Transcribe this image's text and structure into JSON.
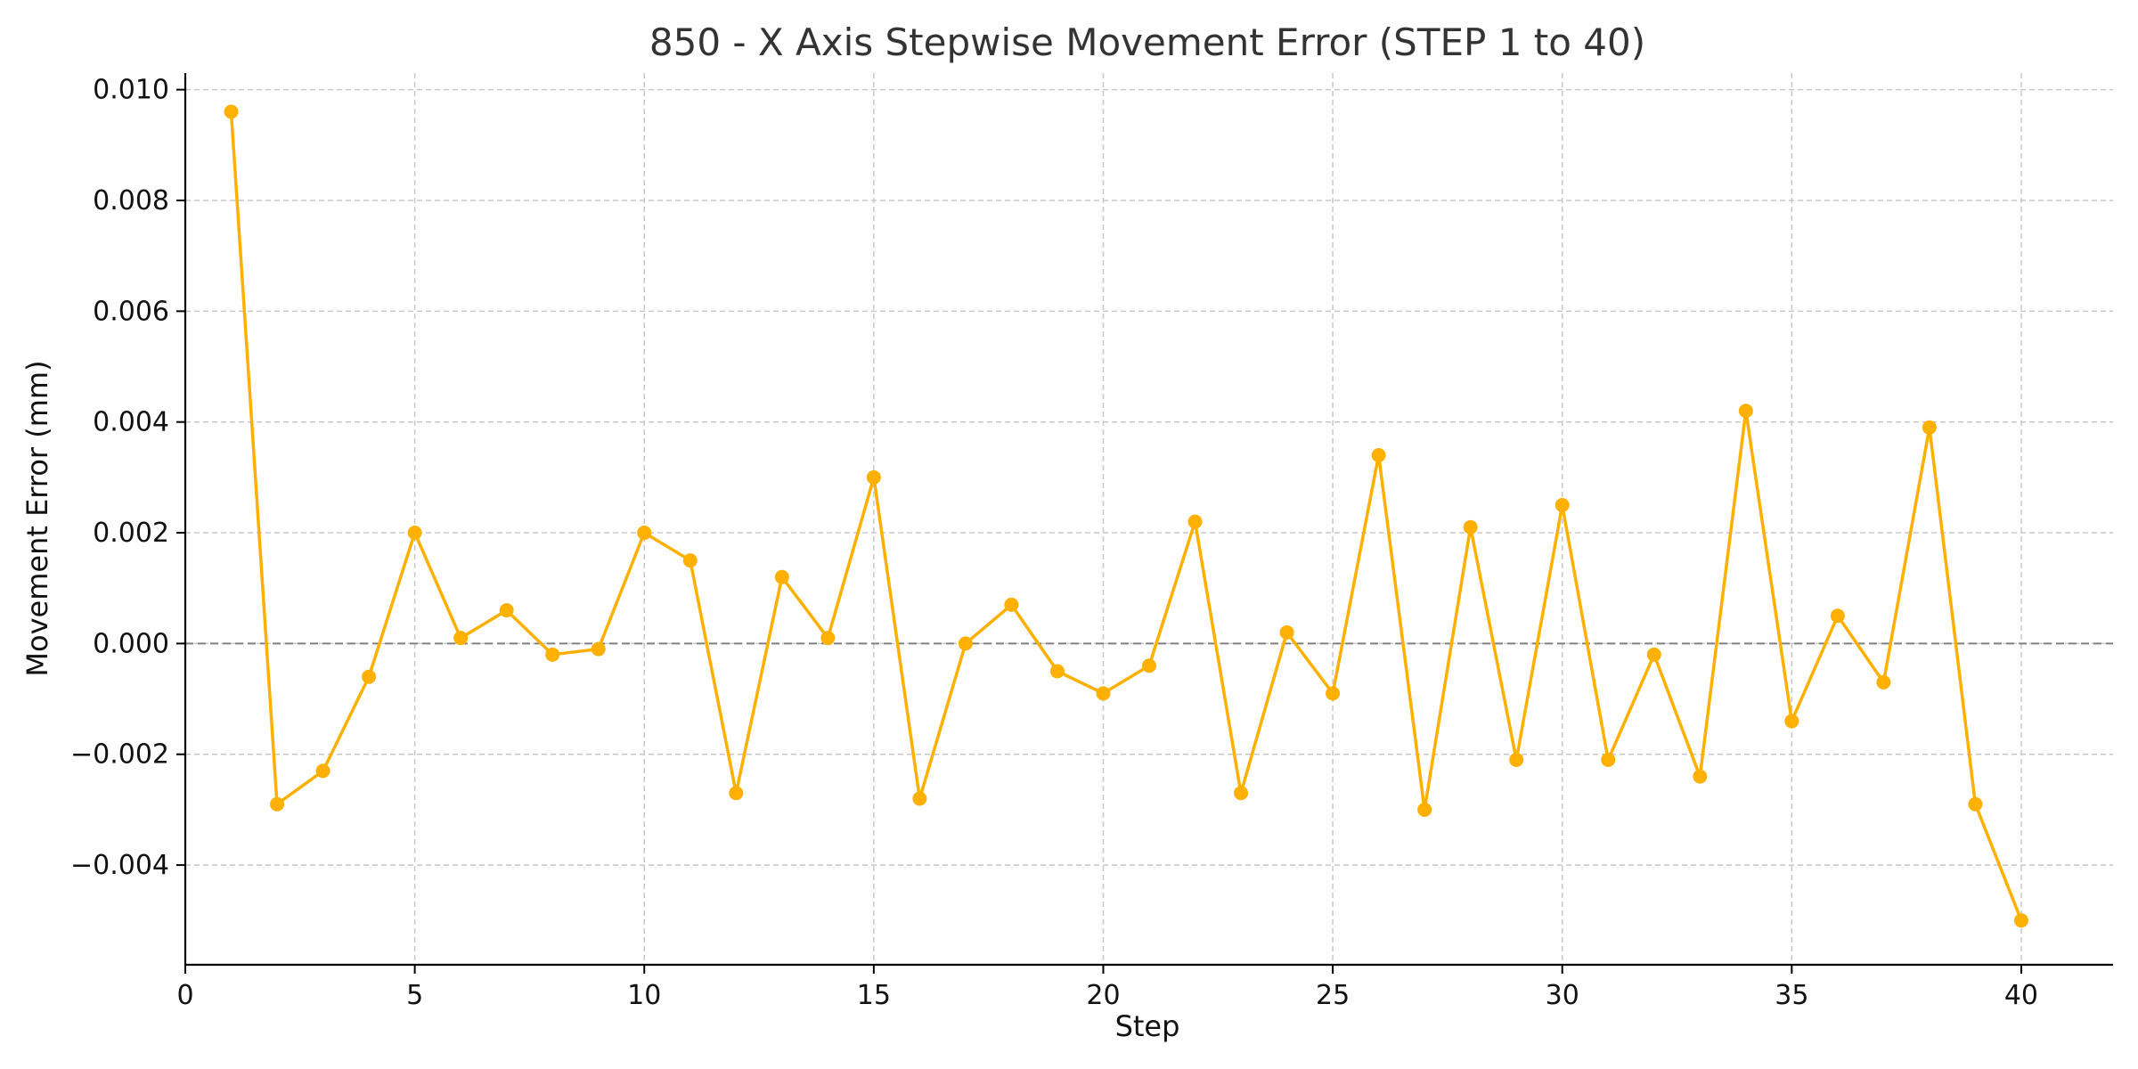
{
  "chart_data": {
    "type": "line",
    "title": "850 - X Axis Stepwise Movement Error (STEP 1 to 40)",
    "xlabel": "Step",
    "ylabel": "Movement Error (mm)",
    "xlim": [
      0,
      42
    ],
    "ylim": [
      -0.0058,
      0.0103
    ],
    "xticks": [
      0,
      5,
      10,
      15,
      20,
      25,
      30,
      35,
      40
    ],
    "xtick_labels": [
      "0",
      "5",
      "10",
      "15",
      "20",
      "25",
      "30",
      "35",
      "40"
    ],
    "yticks": [
      -0.004,
      -0.002,
      0.0,
      0.002,
      0.004,
      0.006,
      0.008,
      0.01
    ],
    "ytick_labels": [
      "−0.004",
      "−0.002",
      "0.000",
      "0.002",
      "0.004",
      "0.006",
      "0.008",
      "0.010"
    ],
    "grid": true,
    "reference_line": {
      "y": 0,
      "style": "dashed",
      "color": "#808080"
    },
    "series": [
      {
        "color": "#FFB000",
        "marker": "circle",
        "x": [
          1,
          2,
          3,
          4,
          5,
          6,
          7,
          8,
          9,
          10,
          11,
          12,
          13,
          14,
          15,
          16,
          17,
          18,
          19,
          20,
          21,
          22,
          23,
          24,
          25,
          26,
          27,
          28,
          29,
          30,
          31,
          32,
          33,
          34,
          35,
          36,
          37,
          38,
          39,
          40
        ],
        "values": [
          0.0096,
          -0.0029,
          -0.0023,
          -0.0006,
          0.002,
          0.0001,
          0.0006,
          -0.0002,
          -0.0001,
          0.002,
          0.0015,
          -0.0027,
          0.0012,
          0.0001,
          0.003,
          -0.0028,
          0.0,
          0.0007,
          -0.0005,
          -0.0009,
          -0.0004,
          0.0022,
          -0.0027,
          0.0002,
          -0.0009,
          0.0034,
          -0.003,
          0.0021,
          -0.0021,
          0.0025,
          -0.0021,
          -0.0002,
          -0.0024,
          0.0042,
          -0.0014,
          0.0005,
          -0.0007,
          0.0039,
          -0.0029,
          -0.005
        ]
      }
    ]
  }
}
